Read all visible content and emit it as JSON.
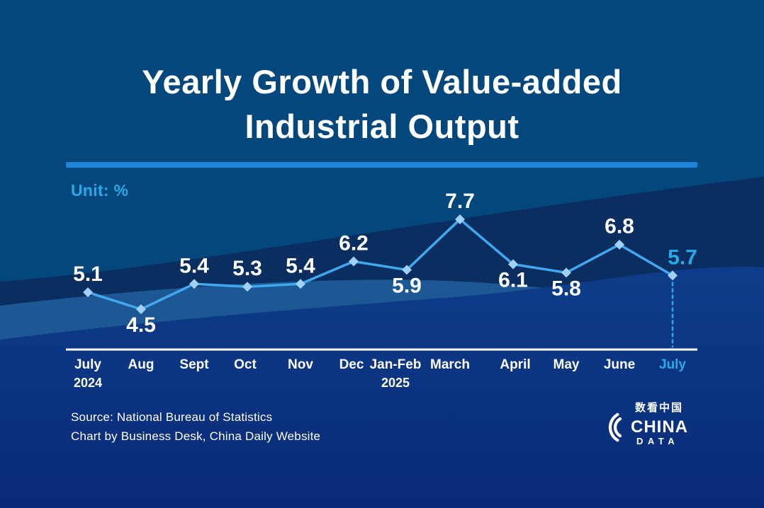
{
  "title": {
    "line1": "Yearly Growth of Value-added",
    "line2": "Industrial Output"
  },
  "unit_label": "Unit: %",
  "source": {
    "line1": "Source: National Bureau of Statistics",
    "line2": "Chart by Business Desk, China Daily Website"
  },
  "logo": {
    "chinese": "数看中国",
    "name": "CHINA",
    "subname": "DATA"
  },
  "colors": {
    "background_top": "#03477D",
    "wave_navy": "#0A2E60",
    "wave_light": "#1D5894",
    "wave_royal_top": "#0D3D8A",
    "wave_royal_bottom": "#092A78",
    "divider": "#1E86D9",
    "accent_cyan": "#29A9E8",
    "line": "#41A8F0",
    "marker": "#9FD0F6",
    "axis": "#FFFFFF",
    "text_white": "#FFFFFF"
  },
  "chart_data": {
    "type": "line",
    "title": "Yearly Growth of Value-added Industrial Output",
    "ylabel": "Unit: %",
    "grid": false,
    "legend": false,
    "categories": [
      {
        "label": "July",
        "sub": "2024"
      },
      {
        "label": "Aug"
      },
      {
        "label": "Sept"
      },
      {
        "label": "Oct"
      },
      {
        "label": "Nov"
      },
      {
        "label": "Dec"
      },
      {
        "label": "Jan-Feb",
        "sub": "2025"
      },
      {
        "label": "March"
      },
      {
        "label": "April"
      },
      {
        "label": "May"
      },
      {
        "label": "June"
      },
      {
        "label": "July"
      }
    ],
    "values": [
      5.1,
      4.5,
      5.4,
      5.3,
      5.4,
      6.2,
      5.9,
      7.7,
      6.1,
      5.8,
      6.8,
      5.7
    ],
    "label_positions": [
      "above",
      "below",
      "above",
      "above",
      "above",
      "above",
      "below",
      "above",
      "below",
      "below",
      "above",
      "above"
    ],
    "highlight_index": 11,
    "ylim": [
      4.5,
      7.7
    ]
  }
}
